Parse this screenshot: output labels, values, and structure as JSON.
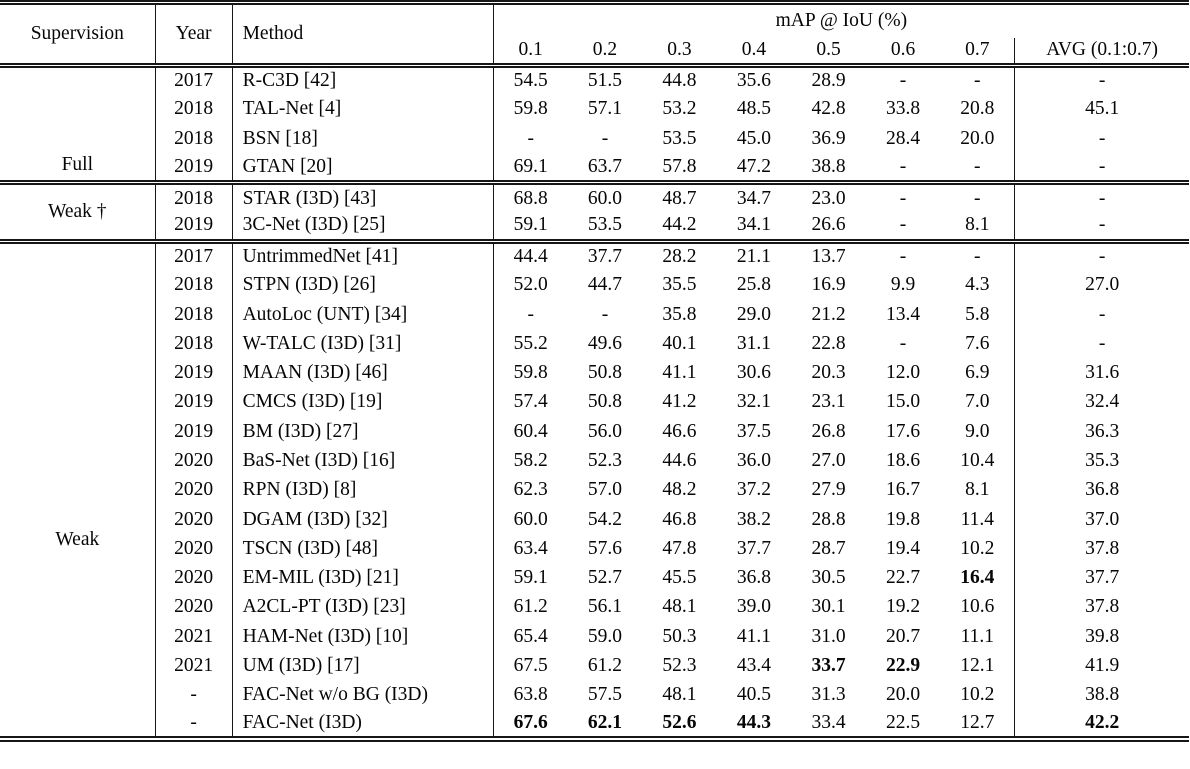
{
  "colors": {
    "rule": "#161616",
    "text": "#060606",
    "background": "#ffffff"
  },
  "table": {
    "header": {
      "supervision": "Supervision",
      "year": "Year",
      "method": "Method",
      "map_group": "mAP @ IoU (%)",
      "iou_cols": [
        "0.1",
        "0.2",
        "0.3",
        "0.4",
        "0.5",
        "0.6",
        "0.7"
      ],
      "avg_col": "AVG (0.1:0.7)"
    },
    "sections": [
      {
        "label": "Full",
        "label_valign": "bottom",
        "label_offset": 0,
        "rows": [
          {
            "year": "2017",
            "method": "R-C3D [42]",
            "values": [
              "54.5",
              "51.5",
              "44.8",
              "35.6",
              "28.9",
              "-",
              "-",
              "-"
            ],
            "bold": []
          },
          {
            "year": "2018",
            "method": "TAL-Net [4]",
            "values": [
              "59.8",
              "57.1",
              "53.2",
              "48.5",
              "42.8",
              "33.8",
              "20.8",
              "45.1"
            ],
            "bold": []
          },
          {
            "year": "2018",
            "method": "BSN [18]",
            "values": [
              "-",
              "-",
              "53.5",
              "45.0",
              "36.9",
              "28.4",
              "20.0",
              "-"
            ],
            "bold": []
          },
          {
            "year": "2019",
            "method": "GTAN [20]",
            "values": [
              "69.1",
              "63.7",
              "57.8",
              "47.2",
              "38.8",
              "-",
              "-",
              "-"
            ],
            "bold": []
          }
        ]
      },
      {
        "label": "Weak †",
        "label_valign": "middle",
        "label_offset": 0,
        "rows": [
          {
            "year": "2018",
            "method": "STAR (I3D) [43]",
            "values": [
              "68.8",
              "60.0",
              "48.7",
              "34.7",
              "23.0",
              "-",
              "-",
              "-"
            ],
            "bold": []
          },
          {
            "year": "2019",
            "method": "3C-Net (I3D) [25]",
            "values": [
              "59.1",
              "53.5",
              "44.2",
              "34.1",
              "26.6",
              "-",
              "8.1",
              "-"
            ],
            "bold": []
          }
        ]
      },
      {
        "label": "Weak",
        "label_valign": "middle",
        "label_offset": 50,
        "rows": [
          {
            "year": "2017",
            "method": "UntrimmedNet [41]",
            "values": [
              "44.4",
              "37.7",
              "28.2",
              "21.1",
              "13.7",
              "-",
              "-",
              "-"
            ],
            "bold": []
          },
          {
            "year": "2018",
            "method": "STPN (I3D) [26]",
            "values": [
              "52.0",
              "44.7",
              "35.5",
              "25.8",
              "16.9",
              "9.9",
              "4.3",
              "27.0"
            ],
            "bold": []
          },
          {
            "year": "2018",
            "method": "AutoLoc (UNT) [34]",
            "values": [
              "-",
              "-",
              "35.8",
              "29.0",
              "21.2",
              "13.4",
              "5.8",
              "-"
            ],
            "bold": []
          },
          {
            "year": "2018",
            "method": "W-TALC (I3D) [31]",
            "values": [
              "55.2",
              "49.6",
              "40.1",
              "31.1",
              "22.8",
              "-",
              "7.6",
              "-"
            ],
            "bold": []
          },
          {
            "year": "2019",
            "method": "MAAN (I3D) [46]",
            "values": [
              "59.8",
              "50.8",
              "41.1",
              "30.6",
              "20.3",
              "12.0",
              "6.9",
              "31.6"
            ],
            "bold": []
          },
          {
            "year": "2019",
            "method": "CMCS (I3D) [19]",
            "values": [
              "57.4",
              "50.8",
              "41.2",
              "32.1",
              "23.1",
              "15.0",
              "7.0",
              "32.4"
            ],
            "bold": []
          },
          {
            "year": "2019",
            "method": "BM (I3D) [27]",
            "values": [
              "60.4",
              "56.0",
              "46.6",
              "37.5",
              "26.8",
              "17.6",
              "9.0",
              "36.3"
            ],
            "bold": []
          },
          {
            "year": "2020",
            "method": "BaS-Net (I3D) [16]",
            "values": [
              "58.2",
              "52.3",
              "44.6",
              "36.0",
              "27.0",
              "18.6",
              "10.4",
              "35.3"
            ],
            "bold": []
          },
          {
            "year": "2020",
            "method": "RPN (I3D) [8]",
            "values": [
              "62.3",
              "57.0",
              "48.2",
              "37.2",
              "27.9",
              "16.7",
              "8.1",
              "36.8"
            ],
            "bold": []
          },
          {
            "year": "2020",
            "method": "DGAM (I3D) [32]",
            "values": [
              "60.0",
              "54.2",
              "46.8",
              "38.2",
              "28.8",
              "19.8",
              "11.4",
              "37.0"
            ],
            "bold": []
          },
          {
            "year": "2020",
            "method": "TSCN (I3D) [48]",
            "values": [
              "63.4",
              "57.6",
              "47.8",
              "37.7",
              "28.7",
              "19.4",
              "10.2",
              "37.8"
            ],
            "bold": []
          },
          {
            "year": "2020",
            "method": "EM-MIL (I3D) [21]",
            "values": [
              "59.1",
              "52.7",
              "45.5",
              "36.8",
              "30.5",
              "22.7",
              "16.4",
              "37.7"
            ],
            "bold": [
              6
            ]
          },
          {
            "year": "2020",
            "method": "A2CL-PT (I3D) [23]",
            "values": [
              "61.2",
              "56.1",
              "48.1",
              "39.0",
              "30.1",
              "19.2",
              "10.6",
              "37.8"
            ],
            "bold": []
          },
          {
            "year": "2021",
            "method": "HAM-Net (I3D) [10]",
            "values": [
              "65.4",
              "59.0",
              "50.3",
              "41.1",
              "31.0",
              "20.7",
              "11.1",
              "39.8"
            ],
            "bold": []
          },
          {
            "year": "2021",
            "method": "UM (I3D) [17]",
            "values": [
              "67.5",
              "61.2",
              "52.3",
              "43.4",
              "33.7",
              "22.9",
              "12.1",
              "41.9"
            ],
            "bold": [
              4,
              5
            ]
          },
          {
            "year": "-",
            "method": "FAC-Net w/o BG (I3D)",
            "values": [
              "63.8",
              "57.5",
              "48.1",
              "40.5",
              "31.3",
              "20.0",
              "10.2",
              "38.8"
            ],
            "bold": []
          },
          {
            "year": "-",
            "method": "FAC-Net (I3D)",
            "values": [
              "67.6",
              "62.1",
              "52.6",
              "44.3",
              "33.4",
              "22.5",
              "12.7",
              "42.2"
            ],
            "bold": [
              0,
              1,
              2,
              3,
              7
            ]
          }
        ]
      }
    ]
  }
}
